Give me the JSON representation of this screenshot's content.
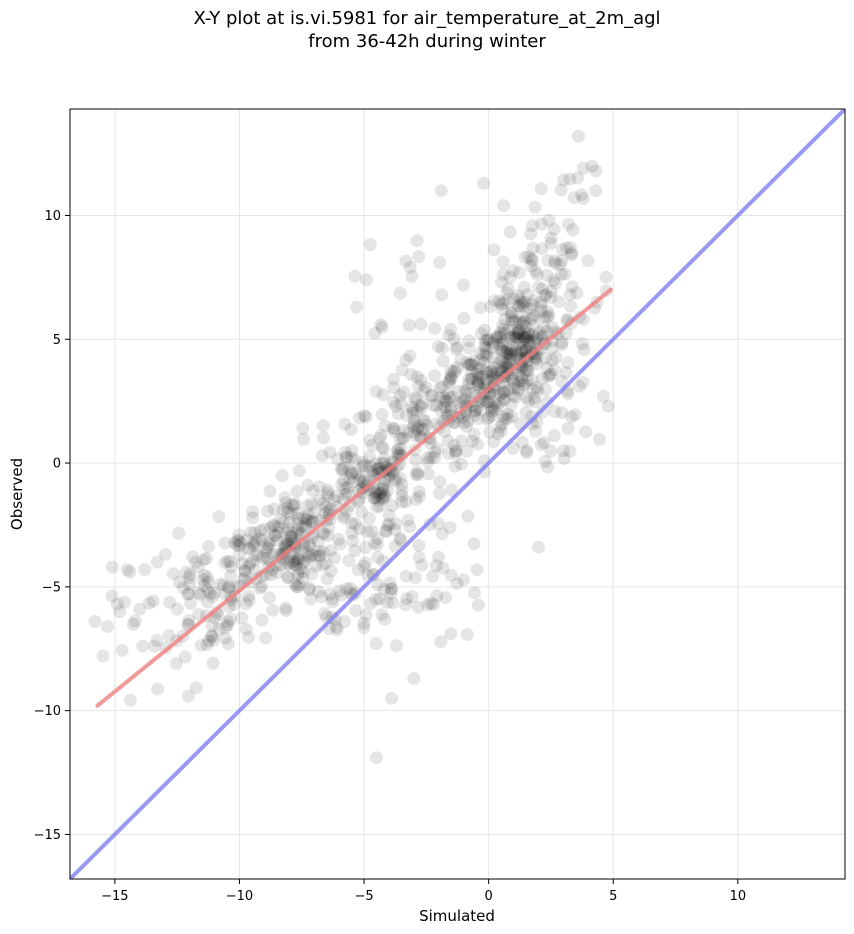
{
  "chart_data": {
    "type": "scatter",
    "title": "X-Y plot at is.vi.5981 for air_temperature_at_2m_agl",
    "subtitle": "from 36-42h during winter",
    "xlabel": "Simulated",
    "ylabel": "Observed",
    "xlim": [
      -16.8,
      14.3
    ],
    "ylim": [
      -16.8,
      14.3
    ],
    "x_ticks": [
      -15,
      -10,
      -5,
      0,
      5,
      10
    ],
    "y_ticks": [
      -15,
      -10,
      -5,
      0,
      5,
      10
    ],
    "x_tick_labels": [
      "−15",
      "−10",
      "−5",
      "0",
      "5",
      "10"
    ],
    "y_tick_labels": [
      "−15",
      "−10",
      "−5",
      "0",
      "5",
      "10"
    ],
    "grid": true,
    "colors": {
      "points": "#000000",
      "fit_line": "#f08080",
      "identity_line": "#8080f0"
    },
    "fit_line": {
      "x": [
        -15.7,
        4.9
      ],
      "y": [
        -9.8,
        7.0
      ]
    },
    "identity_line": {
      "x": [
        -16.8,
        14.3
      ],
      "y": [
        -16.8,
        14.3
      ]
    },
    "clusters": [
      {
        "x": -8.0,
        "y": -3.3,
        "sx": 1.1,
        "sy": 1.0,
        "n": 140
      },
      {
        "x": -10.5,
        "y": -4.8,
        "sx": 1.0,
        "sy": 1.1,
        "n": 70
      },
      {
        "x": -12.5,
        "y": -6.8,
        "sx": 1.2,
        "sy": 1.2,
        "n": 45
      },
      {
        "x": -5.5,
        "y": -1.2,
        "sx": 1.3,
        "sy": 1.5,
        "n": 110
      },
      {
        "x": -4.6,
        "y": -0.8,
        "sx": 0.6,
        "sy": 0.6,
        "n": 45
      },
      {
        "x": -3.0,
        "y": 0.8,
        "sx": 1.2,
        "sy": 1.4,
        "n": 90
      },
      {
        "x": -1.5,
        "y": 2.2,
        "sx": 1.0,
        "sy": 1.2,
        "n": 100
      },
      {
        "x": 0.3,
        "y": 3.5,
        "sx": 0.9,
        "sy": 1.0,
        "n": 140
      },
      {
        "x": 1.2,
        "y": 5.0,
        "sx": 0.6,
        "sy": 1.3,
        "n": 120
      },
      {
        "x": 2.5,
        "y": 6.5,
        "sx": 1.0,
        "sy": 1.6,
        "n": 80
      },
      {
        "x": -6.0,
        "y": -5.5,
        "sx": 1.6,
        "sy": 1.0,
        "n": 60
      },
      {
        "x": -2.5,
        "y": -4.5,
        "sx": 1.5,
        "sy": 1.5,
        "n": 40
      },
      {
        "x": 2.5,
        "y": 2.0,
        "sx": 1.2,
        "sy": 1.2,
        "n": 40
      },
      {
        "x": -3.0,
        "y": 6.5,
        "sx": 1.5,
        "sy": 1.5,
        "n": 20
      },
      {
        "x": 3.0,
        "y": 9.5,
        "sx": 0.8,
        "sy": 1.2,
        "n": 25
      }
    ],
    "outliers": [
      [
        -15.8,
        -6.4
      ],
      [
        -15.3,
        -6.6
      ],
      [
        -15.1,
        -4.2
      ],
      [
        -14.5,
        -4.3
      ],
      [
        -14.9,
        -5.7
      ],
      [
        -14.4,
        -4.4
      ],
      [
        -14.8,
        -6.0
      ],
      [
        -13.8,
        -4.3
      ],
      [
        -14.0,
        -5.9
      ],
      [
        -4.5,
        -11.9
      ],
      [
        -3.9,
        -9.5
      ],
      [
        -1.9,
        11.0
      ],
      [
        -0.2,
        11.3
      ],
      [
        0.6,
        10.4
      ],
      [
        3.6,
        13.2
      ],
      [
        3.8,
        11.9
      ],
      [
        4.3,
        11.8
      ],
      [
        4.3,
        11.0
      ],
      [
        -5.3,
        6.3
      ],
      [
        -4.9,
        7.4
      ],
      [
        4.8,
        2.3
      ],
      [
        4.6,
        2.7
      ],
      [
        2.0,
        -3.4
      ],
      [
        -3.0,
        -8.7
      ],
      [
        -13.3,
        -4.0
      ]
    ]
  }
}
